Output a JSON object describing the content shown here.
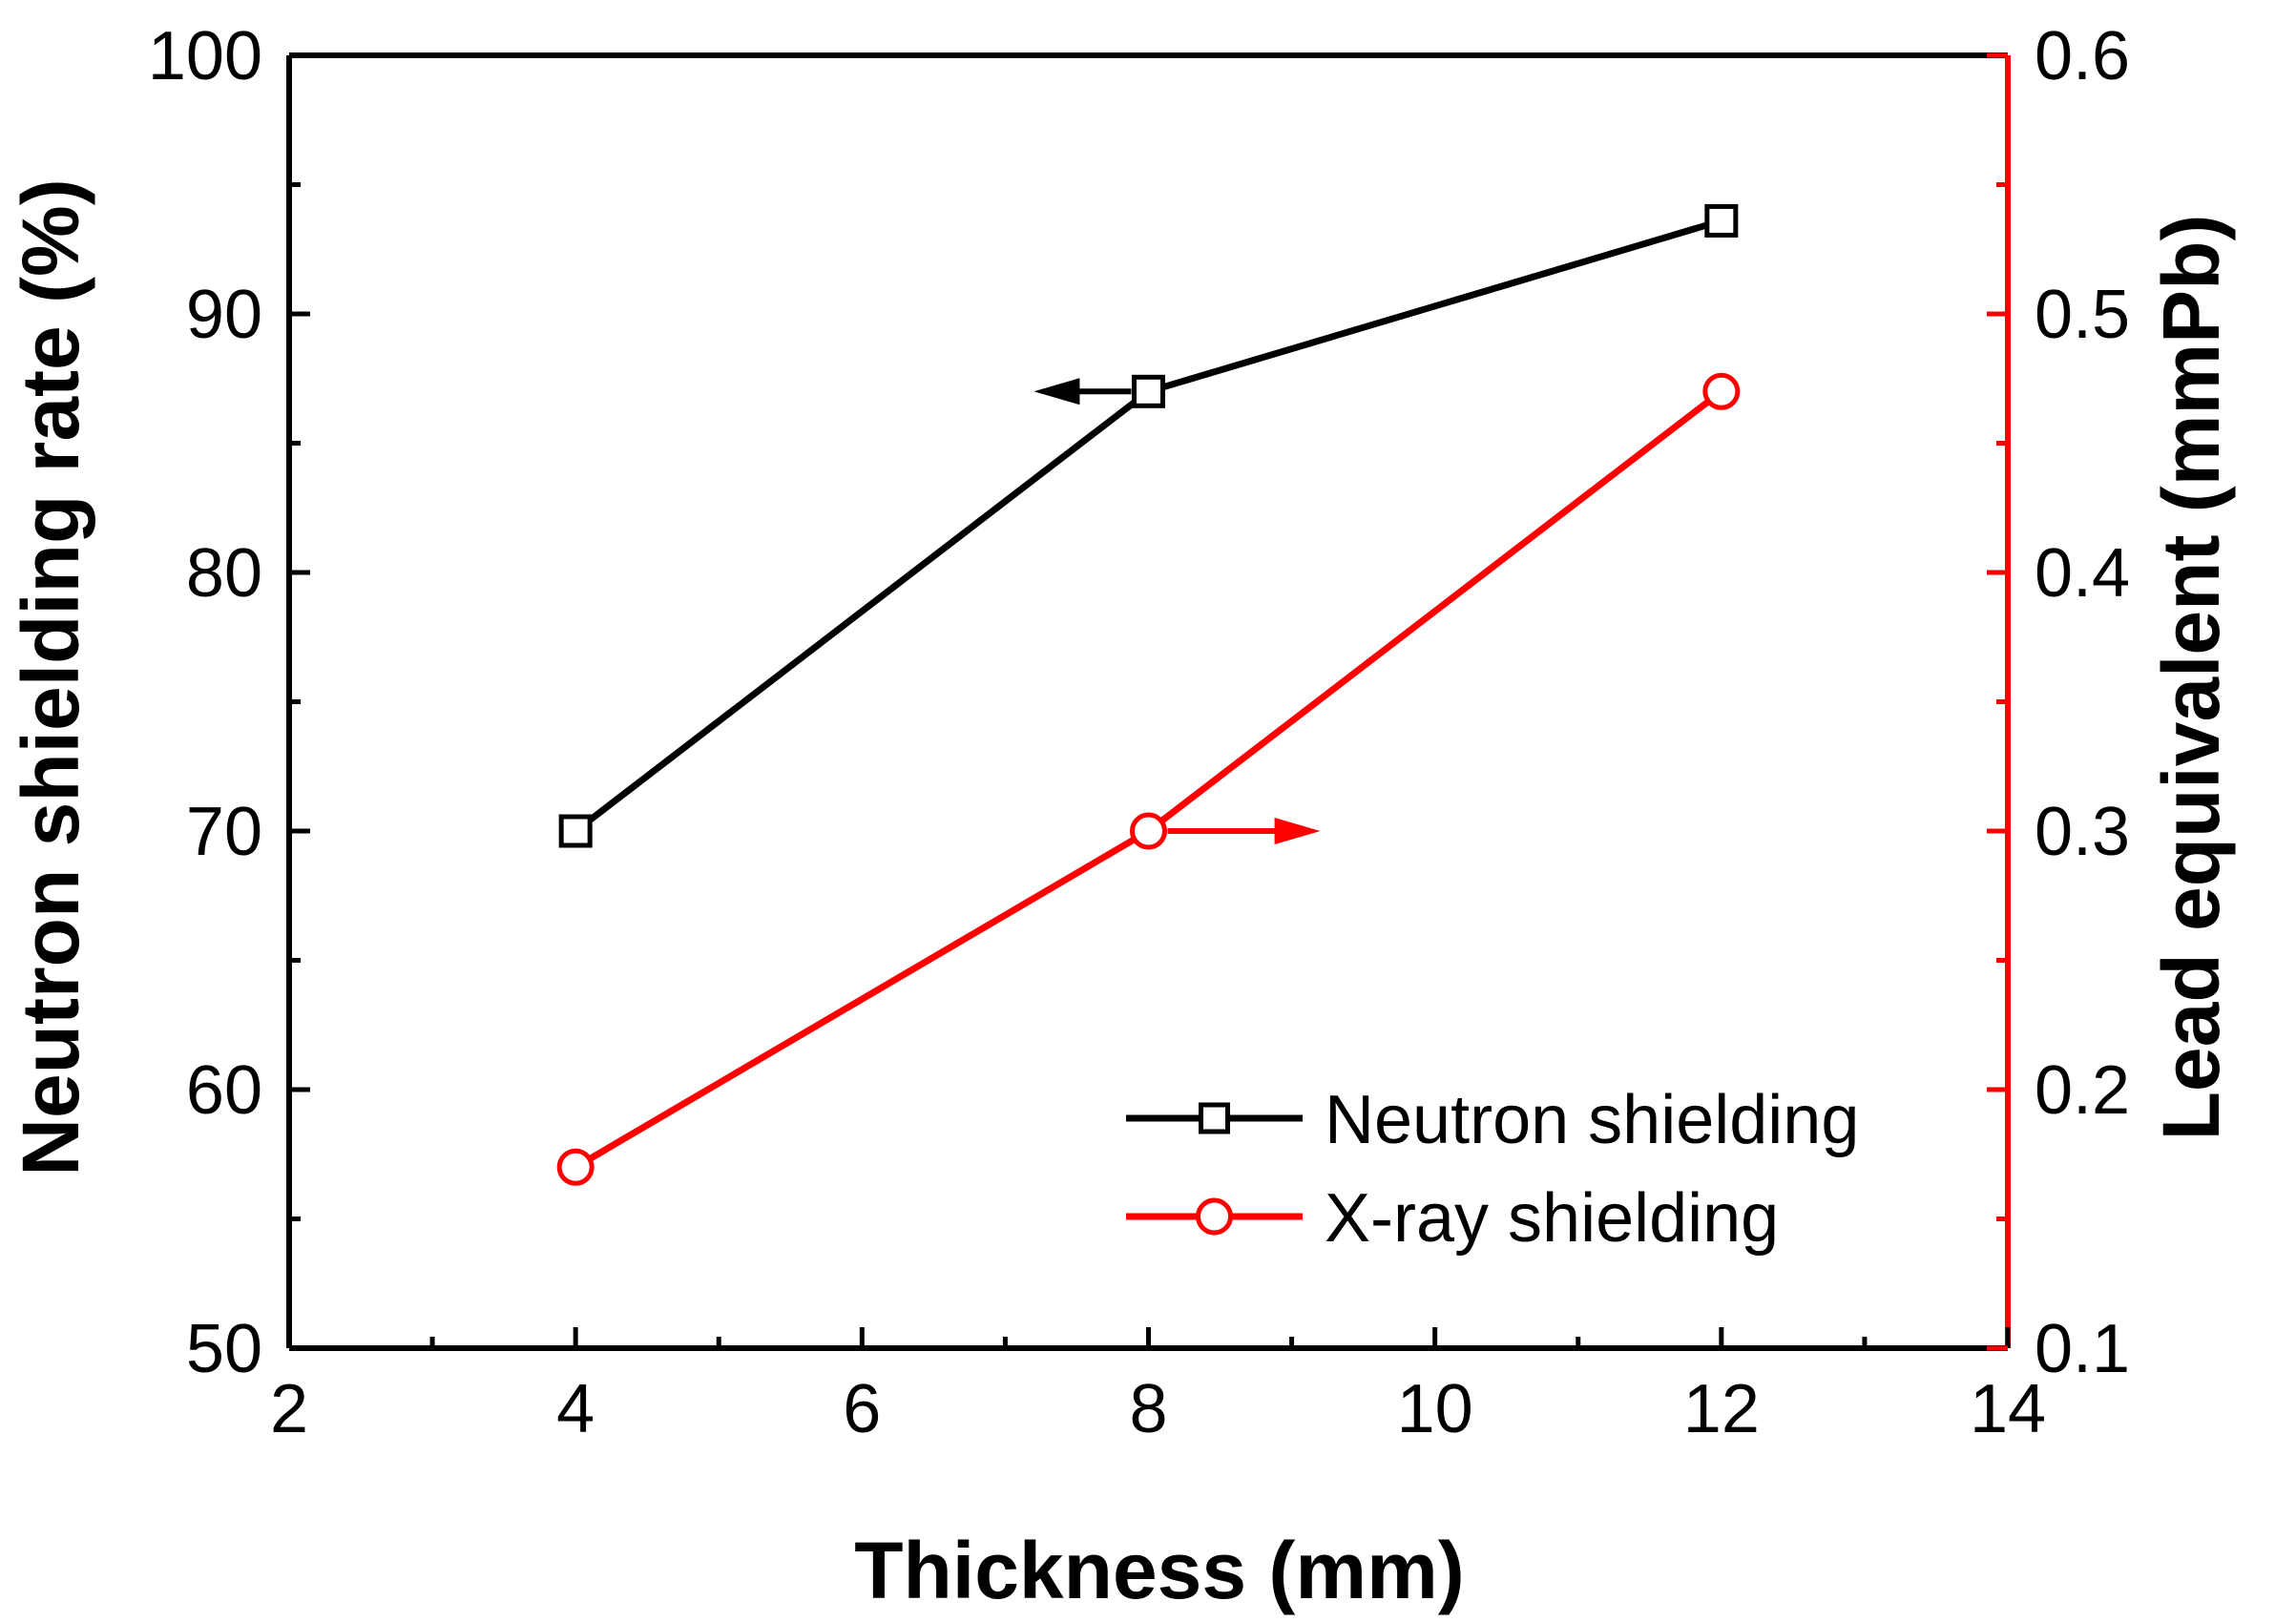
{
  "chart_data": {
    "type": "line",
    "xlabel": "Thickness (mm)",
    "ylabel": "Neutron shielding rate (%)",
    "y2label": "Lead equivalent (mmPb)",
    "xlim": [
      2,
      14
    ],
    "ylim": [
      50,
      100
    ],
    "y2lim": [
      0.1,
      0.6
    ],
    "x_ticks": [
      "2",
      "4",
      "6",
      "8",
      "10",
      "12",
      "14"
    ],
    "y_ticks": [
      "50",
      "60",
      "70",
      "80",
      "90",
      "100"
    ],
    "y2_ticks": [
      "0.1",
      "0.2",
      "0.3",
      "0.4",
      "0.5",
      "0.6"
    ],
    "legend_position": "bottom-right",
    "series": [
      {
        "name": "Neutron shielding",
        "axis": "left",
        "color": "#000000",
        "marker": "square",
        "x": [
          4,
          8,
          12
        ],
        "y": [
          70,
          87,
          93.6
        ]
      },
      {
        "name": "X-ray shielding",
        "axis": "right",
        "color": "#ff0000",
        "marker": "circle",
        "x": [
          4,
          8,
          12
        ],
        "y": [
          0.17,
          0.3,
          0.47
        ]
      }
    ],
    "annotations": [
      {
        "type": "arrow",
        "direction": "left",
        "series": "Neutron shielding",
        "color": "#000000"
      },
      {
        "type": "arrow",
        "direction": "right",
        "series": "X-ray shielding",
        "color": "#ff0000"
      }
    ]
  }
}
